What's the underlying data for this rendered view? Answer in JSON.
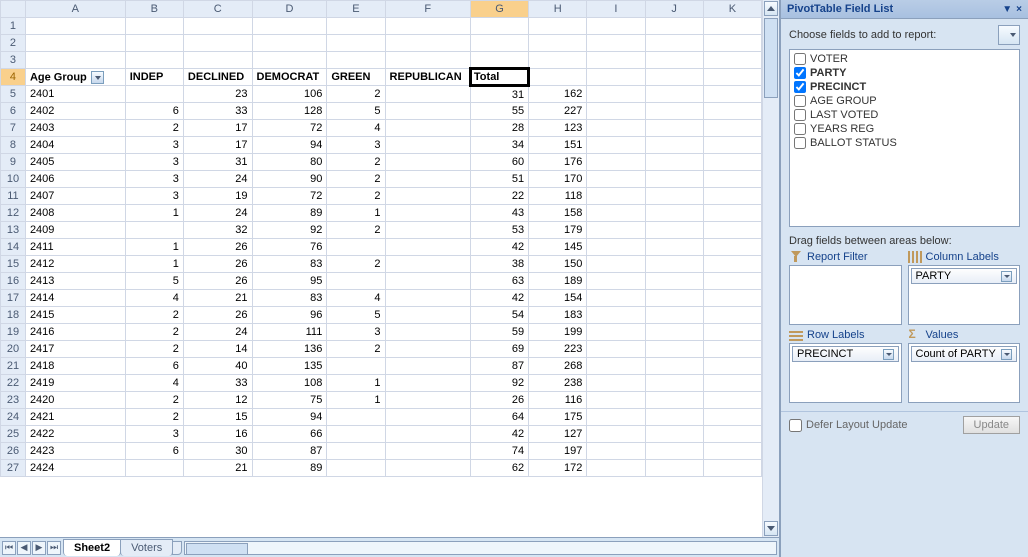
{
  "columns": [
    "A",
    "B",
    "C",
    "D",
    "E",
    "F",
    "G",
    "H",
    "I",
    "J",
    "K"
  ],
  "selectedCol": "G",
  "startRow": 1,
  "headerRowNum": 4,
  "headers": [
    "Age Group",
    "INDEP",
    "DECLINED",
    "DEMOCRAT",
    "GREEN",
    "REPUBLICAN",
    "Total"
  ],
  "hasDropdown": [
    true,
    false,
    false,
    false,
    false,
    false,
    false
  ],
  "rows": [
    {
      "n": 5,
      "c": [
        "2401",
        "",
        "23",
        "106",
        "2",
        "",
        "31",
        "162"
      ]
    },
    {
      "n": 6,
      "c": [
        "2402",
        "6",
        "33",
        "128",
        "5",
        "",
        "55",
        "227"
      ]
    },
    {
      "n": 7,
      "c": [
        "2403",
        "2",
        "17",
        "72",
        "4",
        "",
        "28",
        "123"
      ]
    },
    {
      "n": 8,
      "c": [
        "2404",
        "3",
        "17",
        "94",
        "3",
        "",
        "34",
        "151"
      ]
    },
    {
      "n": 9,
      "c": [
        "2405",
        "3",
        "31",
        "80",
        "2",
        "",
        "60",
        "176"
      ]
    },
    {
      "n": 10,
      "c": [
        "2406",
        "3",
        "24",
        "90",
        "2",
        "",
        "51",
        "170"
      ]
    },
    {
      "n": 11,
      "c": [
        "2407",
        "3",
        "19",
        "72",
        "2",
        "",
        "22",
        "118"
      ]
    },
    {
      "n": 12,
      "c": [
        "2408",
        "1",
        "24",
        "89",
        "1",
        "",
        "43",
        "158"
      ]
    },
    {
      "n": 13,
      "c": [
        "2409",
        "",
        "32",
        "92",
        "2",
        "",
        "53",
        "179"
      ]
    },
    {
      "n": 14,
      "c": [
        "2411",
        "1",
        "26",
        "76",
        "",
        "",
        "42",
        "145"
      ]
    },
    {
      "n": 15,
      "c": [
        "2412",
        "1",
        "26",
        "83",
        "2",
        "",
        "38",
        "150"
      ]
    },
    {
      "n": 16,
      "c": [
        "2413",
        "5",
        "26",
        "95",
        "",
        "",
        "63",
        "189"
      ]
    },
    {
      "n": 17,
      "c": [
        "2414",
        "4",
        "21",
        "83",
        "4",
        "",
        "42",
        "154"
      ]
    },
    {
      "n": 18,
      "c": [
        "2415",
        "2",
        "26",
        "96",
        "5",
        "",
        "54",
        "183"
      ]
    },
    {
      "n": 19,
      "c": [
        "2416",
        "2",
        "24",
        "111",
        "3",
        "",
        "59",
        "199"
      ]
    },
    {
      "n": 20,
      "c": [
        "2417",
        "2",
        "14",
        "136",
        "2",
        "",
        "69",
        "223"
      ]
    },
    {
      "n": 21,
      "c": [
        "2418",
        "6",
        "40",
        "135",
        "",
        "",
        "87",
        "268"
      ]
    },
    {
      "n": 22,
      "c": [
        "2419",
        "4",
        "33",
        "108",
        "1",
        "",
        "92",
        "238"
      ]
    },
    {
      "n": 23,
      "c": [
        "2420",
        "2",
        "12",
        "75",
        "1",
        "",
        "26",
        "116"
      ]
    },
    {
      "n": 24,
      "c": [
        "2421",
        "2",
        "15",
        "94",
        "",
        "",
        "64",
        "175"
      ]
    },
    {
      "n": 25,
      "c": [
        "2422",
        "3",
        "16",
        "66",
        "",
        "",
        "42",
        "127"
      ]
    },
    {
      "n": 26,
      "c": [
        "2423",
        "6",
        "30",
        "87",
        "",
        "",
        "74",
        "197"
      ]
    },
    {
      "n": 27,
      "c": [
        "2424",
        "",
        "21",
        "89",
        "",
        "",
        "62",
        "172"
      ]
    }
  ],
  "emptyRows": [
    1,
    2,
    3
  ],
  "tabs": [
    {
      "label": "Sheet2",
      "active": true
    },
    {
      "label": "Voters",
      "active": false
    }
  ],
  "panel": {
    "title": "PivotTable Field List",
    "chooseLabel": "Choose fields to add to report:",
    "fields": [
      {
        "label": "VOTER",
        "checked": false,
        "bold": false
      },
      {
        "label": "PARTY",
        "checked": true,
        "bold": true
      },
      {
        "label": "PRECINCT",
        "checked": true,
        "bold": true
      },
      {
        "label": "AGE GROUP",
        "checked": false,
        "bold": false
      },
      {
        "label": "LAST VOTED",
        "checked": false,
        "bold": false
      },
      {
        "label": "YEARS REG",
        "checked": false,
        "bold": false
      },
      {
        "label": "BALLOT STATUS",
        "checked": false,
        "bold": false
      }
    ],
    "dragLabel": "Drag fields between areas below:",
    "zones": {
      "filter": {
        "label": "Report Filter",
        "items": []
      },
      "cols": {
        "label": "Column Labels",
        "items": [
          "PARTY"
        ]
      },
      "rows": {
        "label": "Row Labels",
        "items": [
          "PRECINCT"
        ]
      },
      "vals": {
        "label": "Values",
        "items": [
          "Count of PARTY"
        ]
      }
    },
    "deferLabel": "Defer Layout Update",
    "updateLabel": "Update"
  },
  "colWidths": {
    "A": 96,
    "B": 56,
    "C": 66,
    "D": 72,
    "E": 50,
    "F": 80,
    "G": 42,
    "H": 42,
    "I": 42,
    "J": 42,
    "K": 42
  }
}
